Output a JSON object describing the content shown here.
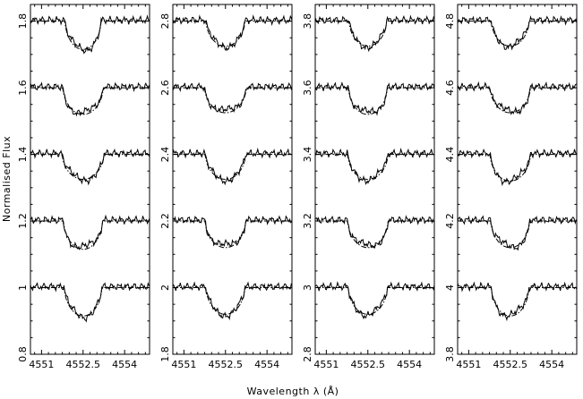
{
  "chart_data": {
    "type": "line",
    "xlabel": "Wavelength λ (Å)",
    "ylabel": "Normalised Flux",
    "xlim": [
      4550.6,
      4554.9
    ],
    "x_ticks": [
      4551,
      4552.5,
      4554
    ],
    "x_tick_labels": [
      "4551",
      "4552.5",
      "4554"
    ],
    "grid": false,
    "legend": "none",
    "line_center": 4552.5,
    "panels": [
      {
        "ylim": [
          0.8,
          1.85
        ],
        "y_ticks": [
          0.8,
          1,
          1.2,
          1.4,
          1.6,
          1.8
        ],
        "y_tick_labels": [
          "0.8",
          "1",
          "1.2",
          "1.4",
          "1.6",
          "1.8"
        ],
        "profiles": [
          {
            "continuum": 1.0,
            "depth": 0.085,
            "width": 1.35
          },
          {
            "continuum": 1.2,
            "depth": 0.085,
            "width": 1.4
          },
          {
            "continuum": 1.4,
            "depth": 0.075,
            "width": 1.5
          },
          {
            "continuum": 1.6,
            "depth": 0.08,
            "width": 1.45
          },
          {
            "continuum": 1.8,
            "depth": 0.085,
            "width": 1.3
          }
        ]
      },
      {
        "ylim": [
          1.8,
          2.85
        ],
        "y_ticks": [
          1.8,
          2,
          2.2,
          2.4,
          2.6,
          2.8
        ],
        "y_tick_labels": [
          "1.8",
          "2",
          "2.2",
          "2.4",
          "2.6",
          "2.8"
        ],
        "profiles": [
          {
            "continuum": 2.0,
            "depth": 0.08,
            "width": 1.4
          },
          {
            "continuum": 2.2,
            "depth": 0.08,
            "width": 1.45
          },
          {
            "continuum": 2.4,
            "depth": 0.075,
            "width": 1.45
          },
          {
            "continuum": 2.6,
            "depth": 0.075,
            "width": 1.5
          },
          {
            "continuum": 2.8,
            "depth": 0.075,
            "width": 1.4
          }
        ]
      },
      {
        "ylim": [
          2.8,
          3.85
        ],
        "y_ticks": [
          2.8,
          3,
          3.2,
          3.4,
          3.6,
          3.8
        ],
        "y_tick_labels": [
          "2.8",
          "3",
          "3.2",
          "3.4",
          "3.6",
          "3.8"
        ],
        "profiles": [
          {
            "continuum": 3.0,
            "depth": 0.08,
            "width": 1.4
          },
          {
            "continuum": 3.2,
            "depth": 0.08,
            "width": 1.45
          },
          {
            "continuum": 3.4,
            "depth": 0.075,
            "width": 1.45
          },
          {
            "continuum": 3.6,
            "depth": 0.08,
            "width": 1.4
          },
          {
            "continuum": 3.8,
            "depth": 0.075,
            "width": 1.35
          }
        ]
      },
      {
        "ylim": [
          3.8,
          4.85
        ],
        "y_ticks": [
          3.8,
          4,
          4.2,
          4.4,
          4.6,
          4.8
        ],
        "y_tick_labels": [
          "3.8",
          "4",
          "4.2",
          "4.4",
          "4.6",
          "4.8"
        ],
        "profiles": [
          {
            "continuum": 4.0,
            "depth": 0.085,
            "width": 1.35
          },
          {
            "continuum": 4.2,
            "depth": 0.08,
            "width": 1.4
          },
          {
            "continuum": 4.4,
            "depth": 0.08,
            "width": 1.45
          },
          {
            "continuum": 4.6,
            "depth": 0.075,
            "width": 1.45
          },
          {
            "continuum": 4.8,
            "depth": 0.075,
            "width": 1.35
          }
        ]
      }
    ]
  }
}
